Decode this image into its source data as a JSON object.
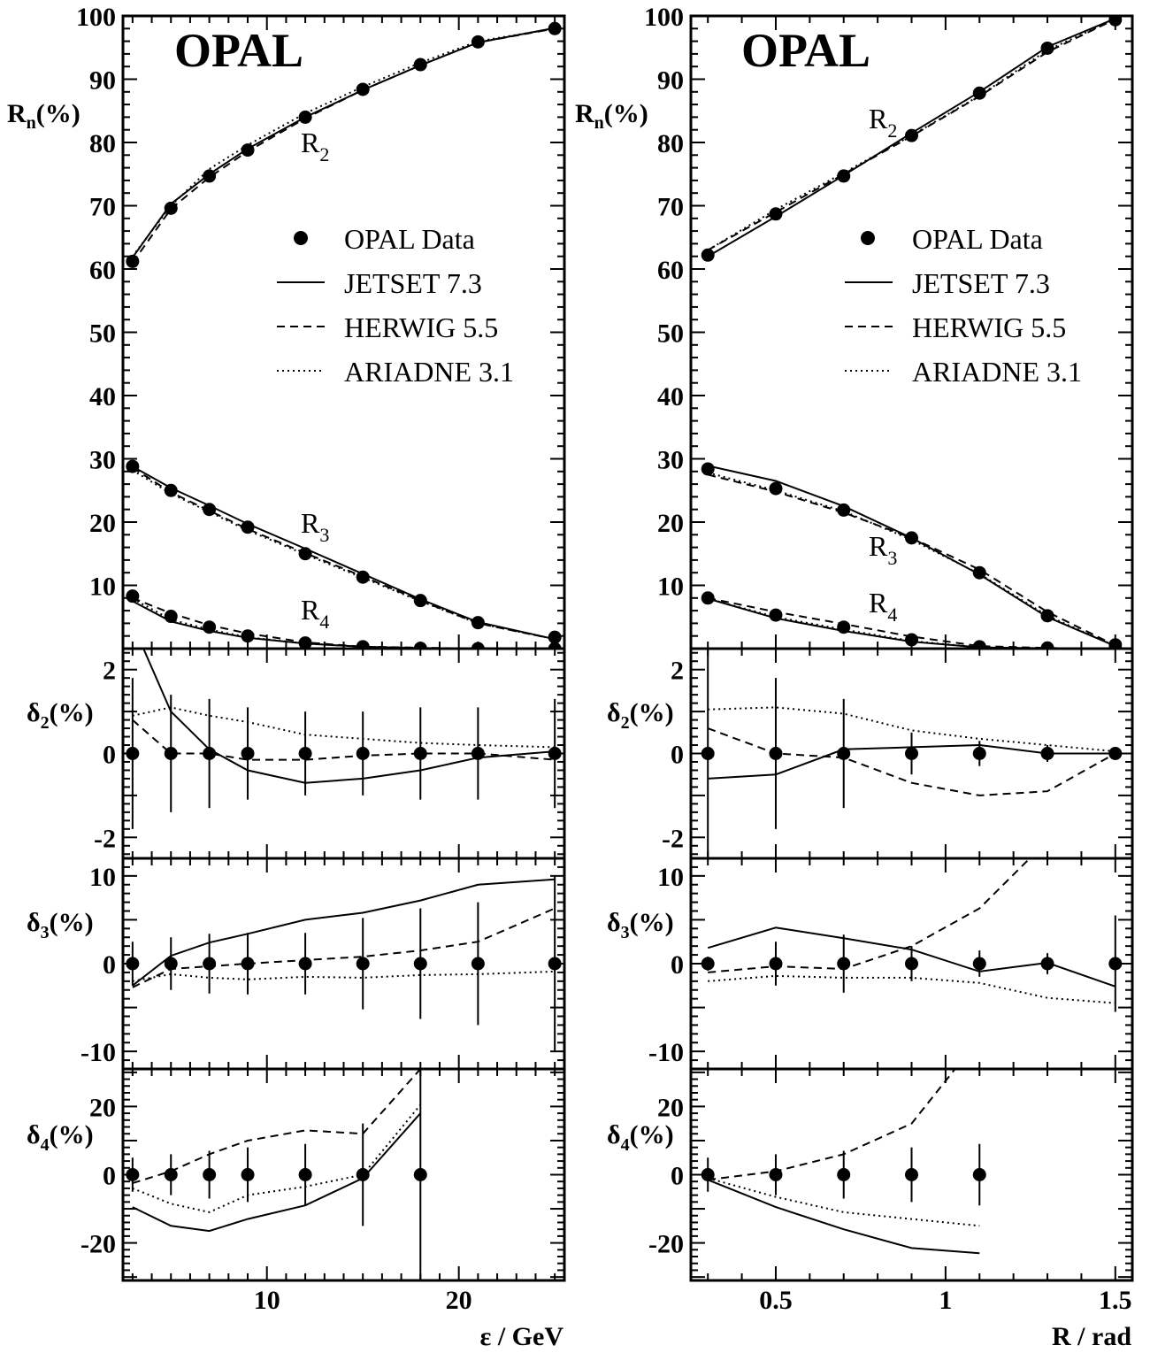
{
  "figure": {
    "panels": [
      {
        "brand": "OPAL",
        "xlabel": "ε / GeV",
        "ylabel": "R",
        "ylabel_sub": "n",
        "ylabel_suffix": "(%)"
      },
      {
        "brand": "OPAL",
        "xlabel": "R / rad",
        "ylabel": "R",
        "ylabel_sub": "n",
        "ylabel_suffix": "(%)"
      }
    ],
    "delta_labels": [
      {
        "main": "δ",
        "sub": "2",
        "suffix": "(%)"
      },
      {
        "main": "δ",
        "sub": "3",
        "suffix": "(%)"
      },
      {
        "main": "δ",
        "sub": "4",
        "suffix": "(%)"
      }
    ],
    "legend": [
      {
        "label": "OPAL Data",
        "style": "marker"
      },
      {
        "label": "JETSET 7.3",
        "style": "solid"
      },
      {
        "label": "HERWIG 5.5",
        "style": "dashed"
      },
      {
        "label": "ARIADNE 3.1",
        "style": "dotted"
      }
    ],
    "curve_labels": {
      "main": "R",
      "r2": "2",
      "r3": "3",
      "r4": "4"
    }
  },
  "chart_data": [
    {
      "type": "line",
      "panel": "left-top",
      "xlabel": "ε / GeV",
      "ylabel": "Rn(%)",
      "xlim": [
        2.5,
        25.5
      ],
      "ylim": [
        0,
        100
      ],
      "x_ticks": [
        10,
        20
      ],
      "y_ticks": [
        10,
        20,
        30,
        40,
        50,
        60,
        70,
        80,
        90,
        100
      ],
      "x": [
        3,
        5,
        7,
        9,
        12,
        15,
        18,
        21,
        25
      ],
      "series": [
        {
          "name": "OPAL Data",
          "group": "R2",
          "values": [
            61.2,
            69.6,
            74.7,
            78.8,
            84.0,
            88.4,
            92.3,
            95.9,
            98.0
          ]
        },
        {
          "name": "JETSET 7.3",
          "group": "R2",
          "values": [
            61.8,
            70.3,
            75.0,
            79.0,
            84.0,
            88.3,
            92.2,
            95.8,
            98.1
          ]
        },
        {
          "name": "HERWIG 5.5",
          "group": "R2",
          "values": [
            61.0,
            69.5,
            74.5,
            78.6,
            83.8,
            88.3,
            92.2,
            95.8,
            98.0
          ]
        },
        {
          "name": "ARIADNE 3.1",
          "group": "R2",
          "values": [
            62.0,
            70.0,
            75.8,
            79.6,
            84.6,
            88.8,
            92.6,
            96.0,
            98.0
          ]
        },
        {
          "name": "OPAL Data",
          "group": "R3",
          "values": [
            28.8,
            25.0,
            22.0,
            19.2,
            15.0,
            11.3,
            7.6,
            4.1,
            1.8
          ]
        },
        {
          "name": "JETSET 7.3",
          "group": "R3",
          "values": [
            28.8,
            25.4,
            22.6,
            19.7,
            15.8,
            11.8,
            7.8,
            4.2,
            1.5
          ]
        },
        {
          "name": "HERWIG 5.5",
          "group": "R3",
          "values": [
            28.6,
            24.7,
            21.8,
            18.9,
            15.1,
            11.4,
            7.6,
            4.0,
            1.5
          ]
        },
        {
          "name": "ARIADNE 3.1",
          "group": "R3",
          "values": [
            28.2,
            24.5,
            21.6,
            18.7,
            14.9,
            11.2,
            7.5,
            4.0,
            1.5
          ]
        },
        {
          "name": "OPAL Data",
          "group": "R4",
          "values": [
            8.3,
            5.1,
            3.4,
            2.0,
            0.9,
            0.3,
            0.05,
            0.0,
            0.0
          ]
        },
        {
          "name": "JETSET 7.3",
          "group": "R4",
          "values": [
            7.5,
            4.3,
            2.8,
            1.7,
            0.8,
            0.3,
            0.08,
            0.0,
            0.0
          ]
        },
        {
          "name": "HERWIG 5.5",
          "group": "R4",
          "values": [
            8.0,
            5.6,
            3.7,
            2.4,
            1.0,
            0.3,
            0.15,
            0.0,
            0.0
          ]
        },
        {
          "name": "ARIADNE 3.1",
          "group": "R4",
          "values": [
            7.9,
            4.6,
            3.0,
            1.8,
            0.8,
            0.3,
            0.1,
            0.0,
            0.0
          ]
        }
      ]
    },
    {
      "type": "line",
      "panel": "left-delta2",
      "xlim": [
        2.5,
        25.5
      ],
      "ylim": [
        -2.5,
        2.5
      ],
      "y_ticks": [
        -2,
        0,
        2
      ],
      "x": [
        3,
        5,
        7,
        9,
        12,
        15,
        18,
        21,
        25
      ],
      "series": [
        {
          "name": "OPAL Data",
          "values": [
            0,
            0,
            0,
            0,
            0,
            0,
            0,
            0,
            0
          ],
          "errors": [
            1.8,
            1.4,
            1.3,
            1.1,
            1.0,
            1.0,
            1.1,
            1.1,
            1.3
          ]
        },
        {
          "name": "JETSET 7.3",
          "values": [
            3.1,
            1.0,
            0.1,
            -0.4,
            -0.7,
            -0.6,
            -0.4,
            -0.1,
            0.05
          ]
        },
        {
          "name": "HERWIG 5.5",
          "values": [
            0.8,
            0.0,
            0.0,
            -0.15,
            -0.15,
            -0.05,
            0.0,
            0.0,
            -0.15
          ]
        },
        {
          "name": "ARIADNE 3.1",
          "values": [
            0.9,
            1.1,
            0.9,
            0.75,
            0.45,
            0.35,
            0.25,
            0.2,
            0.15
          ]
        }
      ]
    },
    {
      "type": "line",
      "panel": "left-delta3",
      "xlim": [
        2.5,
        25.5
      ],
      "ylim": [
        -12,
        12
      ],
      "y_ticks": [
        -10,
        0,
        10
      ],
      "x": [
        3,
        5,
        7,
        9,
        12,
        15,
        18,
        21,
        25
      ],
      "series": [
        {
          "name": "OPAL Data",
          "values": [
            0,
            0,
            0,
            0,
            0,
            0,
            0,
            0,
            0
          ],
          "errors": [
            2.5,
            3.0,
            3.4,
            3.5,
            3.5,
            5.2,
            6.3,
            7.0,
            10.0
          ]
        },
        {
          "name": "JETSET 7.3",
          "values": [
            -2.5,
            0.9,
            2.4,
            3.4,
            5.0,
            5.8,
            7.2,
            9.0,
            9.6
          ]
        },
        {
          "name": "HERWIG 5.5",
          "values": [
            -2.7,
            -0.6,
            -0.3,
            0.0,
            0.4,
            0.8,
            1.5,
            2.5,
            6.3
          ]
        },
        {
          "name": "ARIADNE 3.1",
          "values": [
            -2.0,
            -1.2,
            -1.6,
            -1.8,
            -1.5,
            -1.6,
            -1.3,
            -1.2,
            -0.9
          ]
        }
      ]
    },
    {
      "type": "line",
      "panel": "left-delta4",
      "xlim": [
        2.5,
        25.5
      ],
      "ylim": [
        -31,
        31
      ],
      "y_ticks": [
        -20,
        0,
        20
      ],
      "x": [
        3,
        5,
        7,
        9,
        12,
        15,
        18
      ],
      "series": [
        {
          "name": "OPAL Data",
          "values": [
            0,
            0,
            0,
            0,
            0,
            0,
            0
          ],
          "errors": [
            5,
            6,
            7,
            8,
            9,
            15,
            40
          ]
        },
        {
          "name": "JETSET 7.3",
          "values": [
            -9.5,
            -15,
            -16.5,
            -13,
            -9,
            -1,
            18
          ]
        },
        {
          "name": "HERWIG 5.5",
          "values": [
            -2.5,
            1,
            6,
            10,
            13,
            12,
            31
          ]
        },
        {
          "name": "ARIADNE 3.1",
          "values": [
            -4,
            -8.5,
            -11,
            -6,
            -3.5,
            0,
            20.5
          ]
        }
      ]
    },
    {
      "type": "line",
      "panel": "right-top",
      "xlabel": "R / rad",
      "ylabel": "Rn(%)",
      "xlim": [
        0.25,
        1.55
      ],
      "ylim": [
        0,
        100
      ],
      "x_ticks": [
        0.5,
        1,
        1.5
      ],
      "x_tick_labels": [
        "0.5",
        "1",
        "1.5"
      ],
      "y_ticks": [
        10,
        20,
        30,
        40,
        50,
        60,
        70,
        80,
        90,
        100
      ],
      "x": [
        0.3,
        0.5,
        0.7,
        0.9,
        1.1,
        1.3,
        1.5
      ],
      "series": [
        {
          "name": "OPAL Data",
          "group": "R2",
          "values": [
            62.2,
            68.7,
            74.7,
            81.1,
            87.8,
            94.9,
            99.4
          ]
        },
        {
          "name": "JETSET 7.3",
          "group": "R2",
          "values": [
            62.0,
            68.3,
            74.8,
            81.5,
            88.0,
            95.1,
            99.6
          ]
        },
        {
          "name": "HERWIG 5.5",
          "group": "R2",
          "values": [
            63.0,
            69.0,
            75.0,
            81.0,
            87.3,
            94.3,
            99.5
          ]
        },
        {
          "name": "ARIADNE 3.1",
          "group": "R2",
          "values": [
            63.0,
            69.4,
            75.2,
            81.1,
            87.4,
            94.6,
            99.5
          ]
        },
        {
          "name": "OPAL Data",
          "group": "R3",
          "values": [
            28.4,
            25.3,
            21.9,
            17.5,
            12.0,
            5.2,
            0.6
          ]
        },
        {
          "name": "JETSET 7.3",
          "group": "R3",
          "values": [
            28.9,
            26.5,
            22.5,
            17.5,
            11.7,
            5.0,
            0.4
          ]
        },
        {
          "name": "HERWIG 5.5",
          "group": "R3",
          "values": [
            27.5,
            24.8,
            21.5,
            17.5,
            12.5,
            5.8,
            0.5
          ]
        },
        {
          "name": "ARIADNE 3.1",
          "group": "R3",
          "values": [
            27.8,
            25.0,
            21.7,
            17.2,
            11.8,
            5.2,
            0.4
          ]
        },
        {
          "name": "OPAL Data",
          "group": "R4",
          "values": [
            8.0,
            5.3,
            3.4,
            1.4,
            0.3,
            0.1,
            0.0
          ]
        },
        {
          "name": "JETSET 7.3",
          "group": "R4",
          "values": [
            7.9,
            4.8,
            2.8,
            1.1,
            0.2,
            0.05,
            0.0
          ]
        },
        {
          "name": "HERWIG 5.5",
          "group": "R4",
          "values": [
            8.0,
            5.8,
            3.9,
            1.9,
            0.4,
            0.1,
            0.0
          ]
        },
        {
          "name": "ARIADNE 3.1",
          "group": "R4",
          "values": [
            7.9,
            5.0,
            3.0,
            1.2,
            0.2,
            0.05,
            0.0
          ]
        }
      ]
    },
    {
      "type": "line",
      "panel": "right-delta2",
      "xlim": [
        0.25,
        1.55
      ],
      "ylim": [
        -2.5,
        2.5
      ],
      "y_ticks": [
        -2,
        0,
        2
      ],
      "x": [
        0.3,
        0.5,
        0.7,
        0.9,
        1.1,
        1.3,
        1.5
      ],
      "series": [
        {
          "name": "OPAL Data",
          "values": [
            0,
            0,
            0,
            0,
            0,
            0,
            0
          ],
          "errors": [
            2.6,
            1.8,
            1.3,
            0.5,
            0.3,
            0.2,
            0.1
          ]
        },
        {
          "name": "JETSET 7.3",
          "values": [
            -0.6,
            -0.5,
            0.1,
            0.15,
            0.2,
            0.0,
            0.0
          ]
        },
        {
          "name": "HERWIG 5.5",
          "values": [
            0.6,
            0.0,
            -0.1,
            -0.7,
            -1.0,
            -0.9,
            0.0
          ]
        },
        {
          "name": "ARIADNE 3.1",
          "values": [
            1.05,
            1.1,
            0.95,
            0.55,
            0.35,
            0.2,
            0.05
          ]
        }
      ]
    },
    {
      "type": "line",
      "panel": "right-delta3",
      "xlim": [
        0.25,
        1.55
      ],
      "ylim": [
        -12,
        12
      ],
      "y_ticks": [
        -10,
        0,
        10
      ],
      "x": [
        0.3,
        0.5,
        0.7,
        0.9,
        1.1,
        1.3,
        1.5
      ],
      "series": [
        {
          "name": "OPAL Data",
          "values": [
            0,
            0,
            0,
            0,
            0,
            0,
            0
          ],
          "errors": [
            0.8,
            2.5,
            3.3,
            2.0,
            1.5,
            1.2,
            5.5
          ]
        },
        {
          "name": "JETSET 7.3",
          "values": [
            1.8,
            4.1,
            2.9,
            1.6,
            -0.9,
            0.1,
            -2.6
          ]
        },
        {
          "name": "HERWIG 5.5",
          "values": [
            -1.0,
            -0.3,
            -0.6,
            2.0,
            6.3,
            14,
            14
          ]
        },
        {
          "name": "ARIADNE 3.1",
          "values": [
            -2.0,
            -1.4,
            -1.6,
            -1.6,
            -2.2,
            -3.9,
            -4.5
          ]
        }
      ]
    },
    {
      "type": "line",
      "panel": "right-delta4",
      "xlim": [
        0.25,
        1.55
      ],
      "ylim": [
        -31,
        31
      ],
      "y_ticks": [
        -20,
        0,
        20
      ],
      "x": [
        0.3,
        0.5,
        0.7,
        0.9,
        1.1
      ],
      "series": [
        {
          "name": "OPAL Data",
          "values": [
            0,
            0,
            0,
            0,
            0
          ],
          "errors": [
            5,
            6,
            7,
            8,
            9
          ]
        },
        {
          "name": "JETSET 7.3",
          "values": [
            -1.5,
            -9.5,
            -16,
            -21.5,
            -23
          ]
        },
        {
          "name": "HERWIG 5.5",
          "values": [
            -1.5,
            1,
            6,
            15,
            40
          ]
        },
        {
          "name": "ARIADNE 3.1",
          "values": [
            -1,
            -6.5,
            -11,
            -13,
            -15
          ]
        }
      ]
    }
  ]
}
